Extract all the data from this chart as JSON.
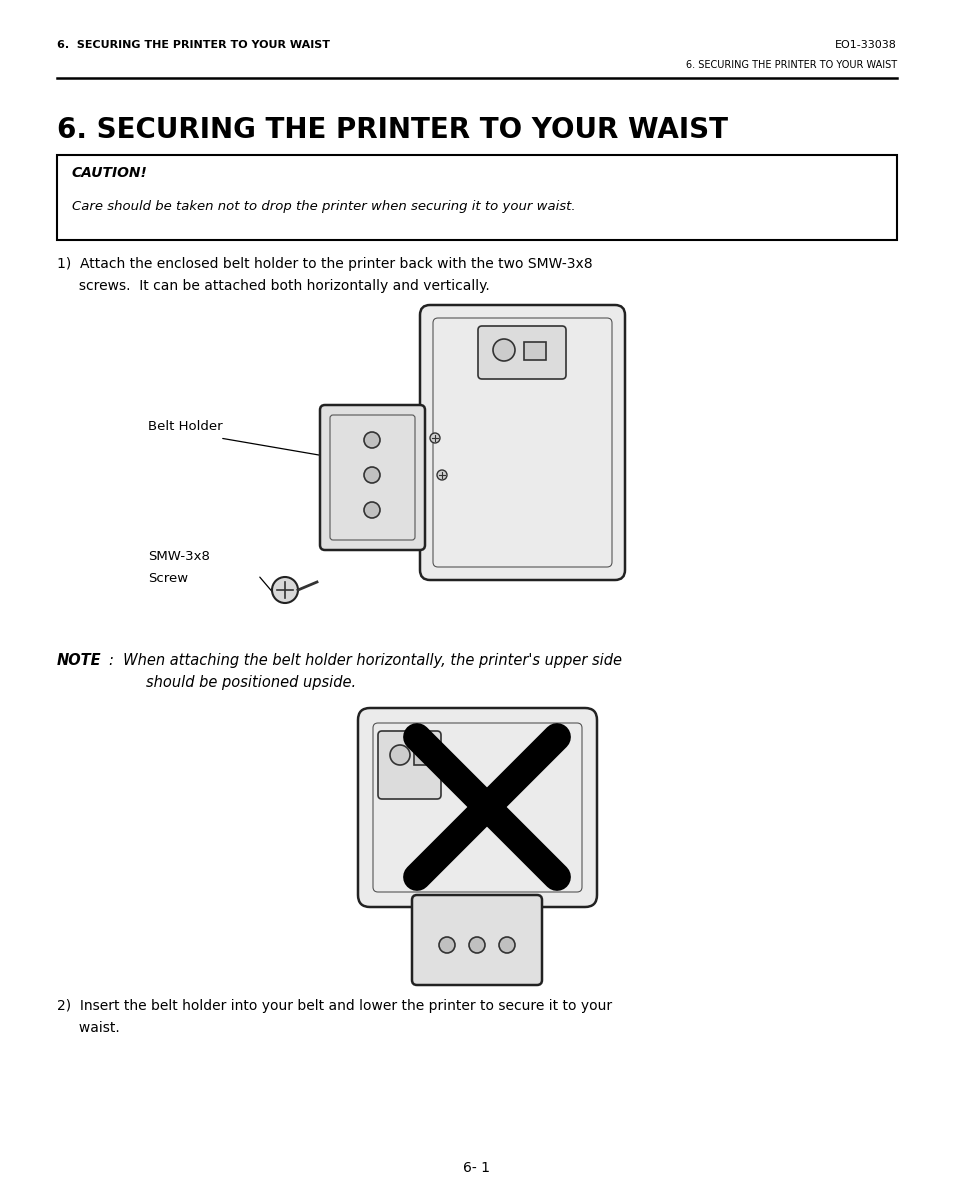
{
  "bg_color": "#ffffff",
  "page_width": 9.54,
  "page_height": 11.98,
  "header_left": "6.  SECURING THE PRINTER TO YOUR WAIST",
  "header_right": "EO1-33038",
  "subheader_right": "6. SECURING THE PRINTER TO YOUR WAIST",
  "section_title": "6. SECURING THE PRINTER TO YOUR WAIST",
  "caution_title": "CAUTION!",
  "caution_body": "Care should be taken not to drop the printer when securing it to your waist.",
  "step1_line1": "1)  Attach the enclosed belt holder to the printer back with the two SMW-3x8",
  "step1_line2": "     screws.  It can be attached both horizontally and vertically.",
  "label_belt_holder": "Belt Holder",
  "label_screw_name": "SMW-3x8",
  "label_screw_type": "Screw",
  "note_bold": "NOTE",
  "note_colon": ":",
  "note_line1": "  When attaching the belt holder horizontally, the printer's upper side",
  "note_line2": "        should be positioned upside.",
  "step2_line1": "2)  Insert the belt holder into your belt and lower the printer to secure it to your",
  "step2_line2": "     waist.",
  "footer_text": "6- 1"
}
